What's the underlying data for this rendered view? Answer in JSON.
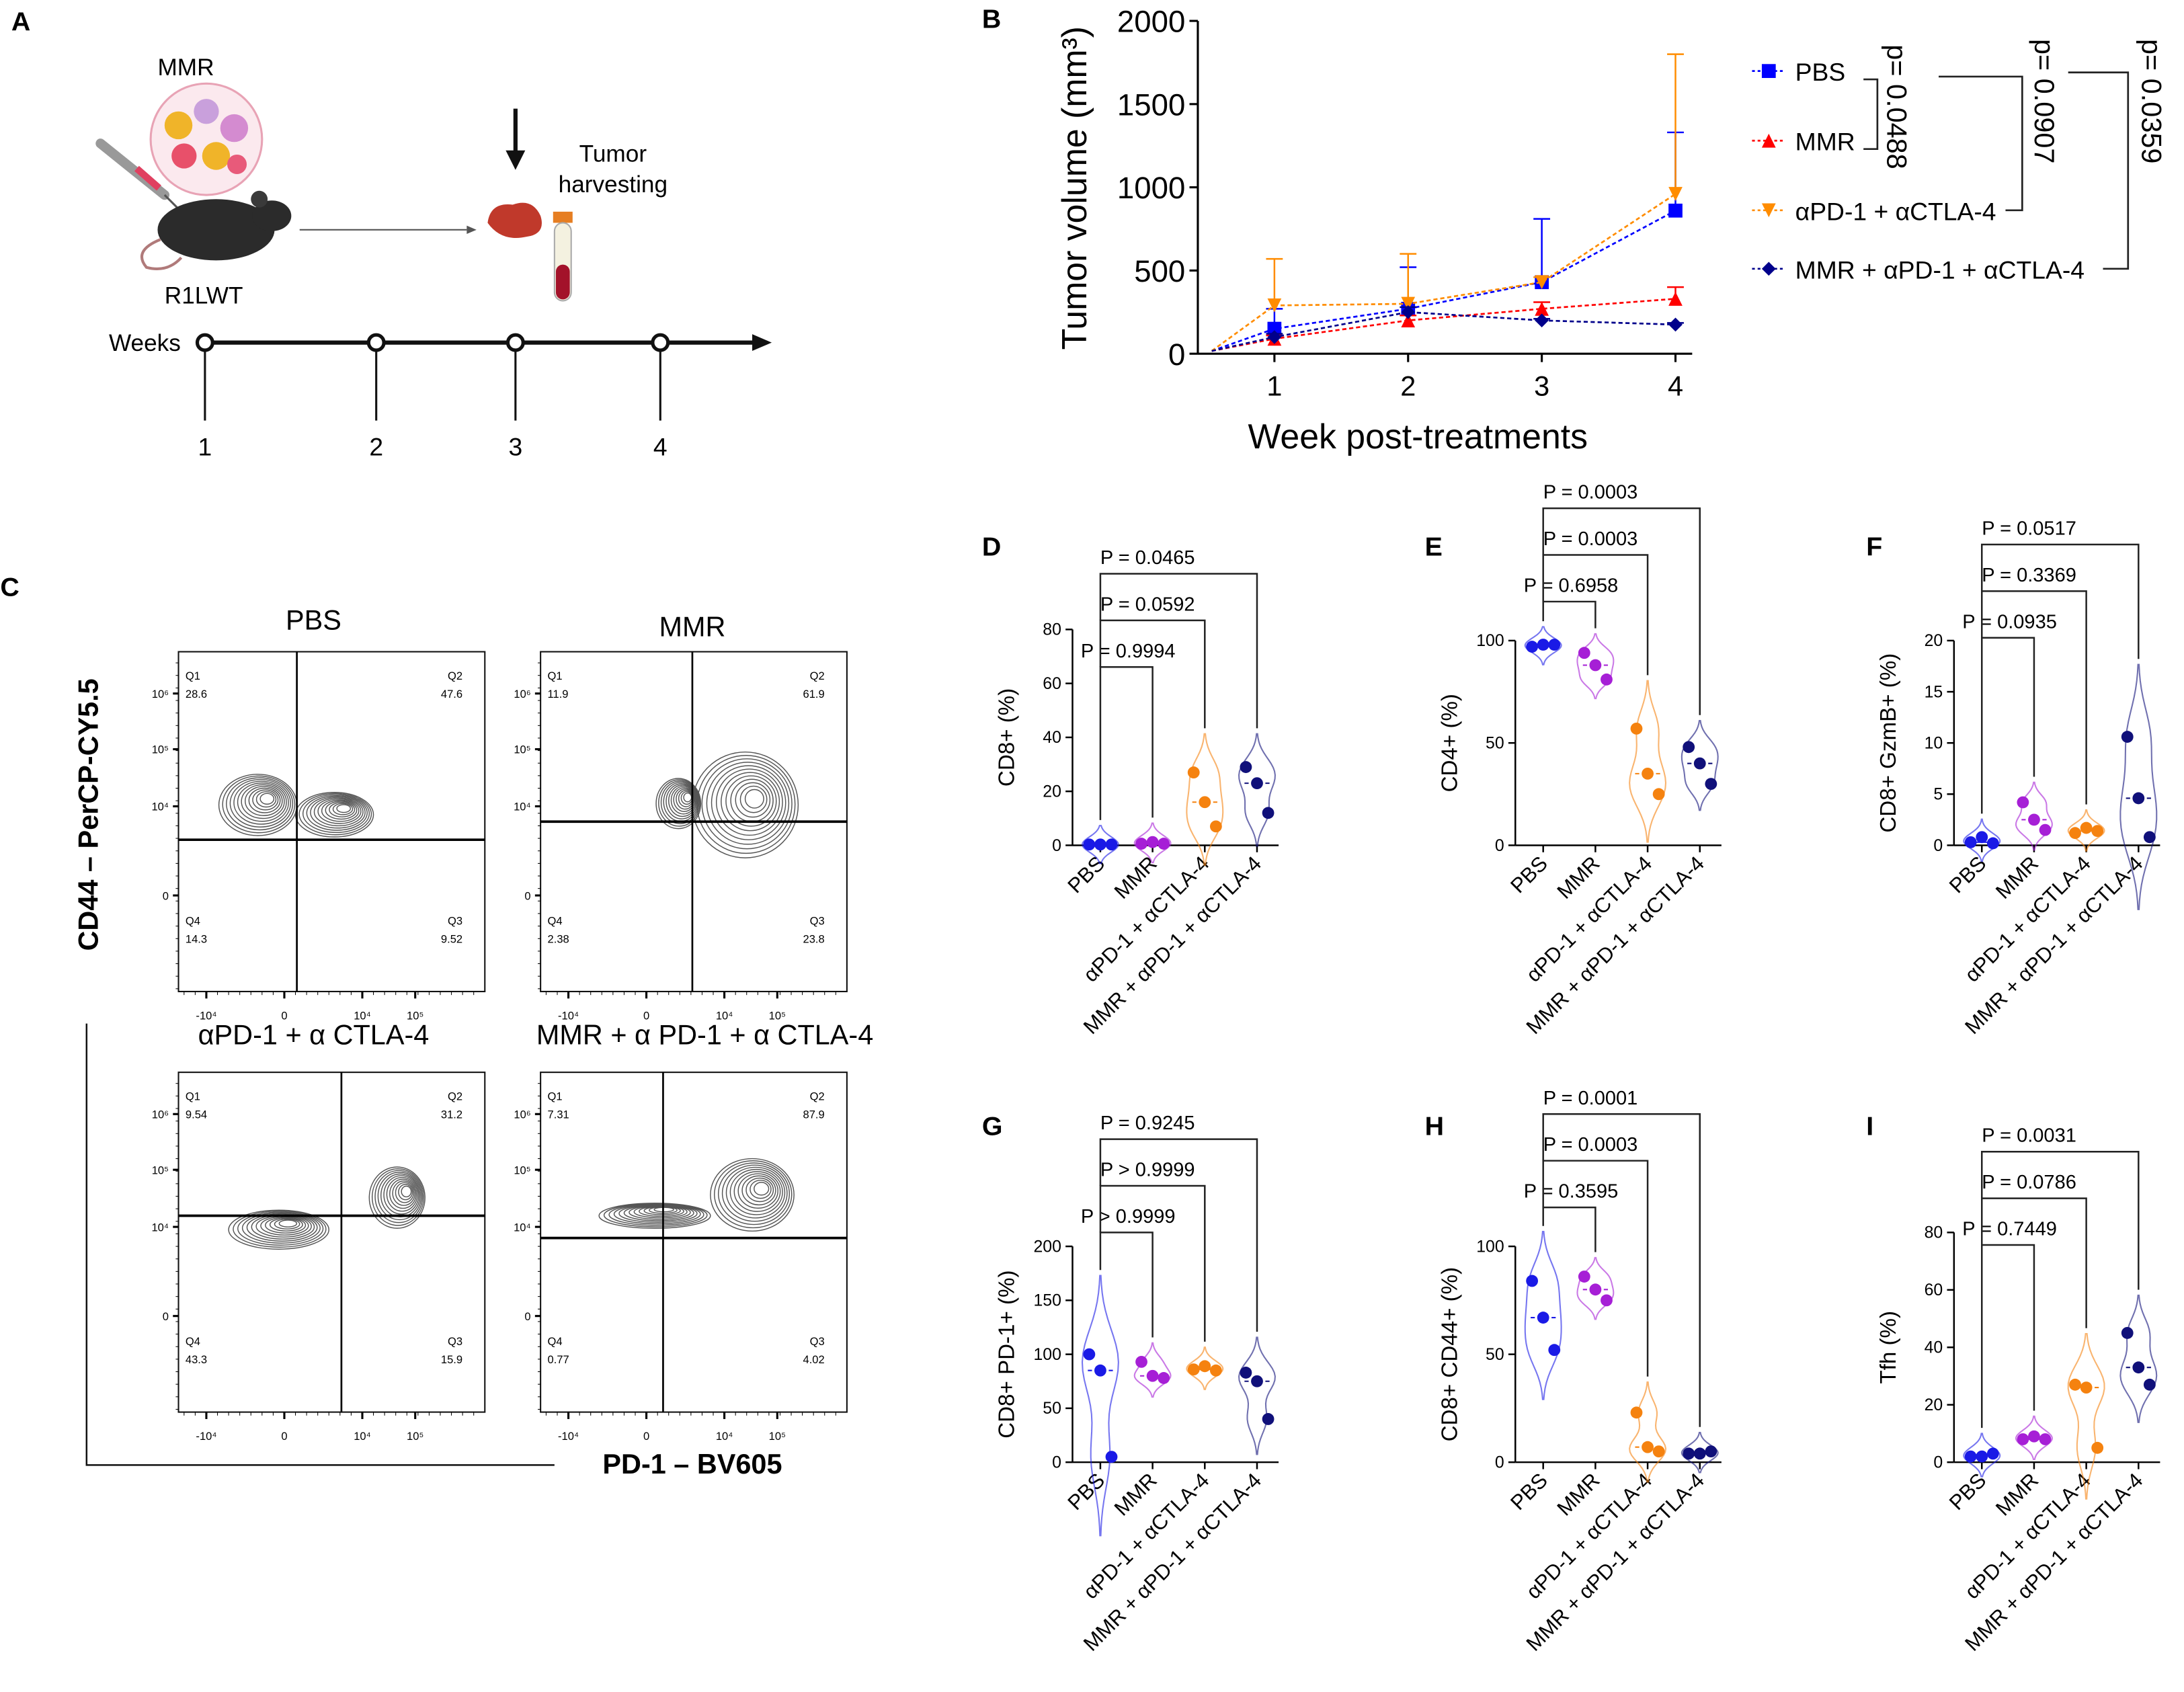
{
  "panel_labels": [
    "A",
    "B",
    "C",
    "D",
    "E",
    "F",
    "G",
    "H",
    "I"
  ],
  "panel_a": {
    "mmr_label": "MMR",
    "mouse_label": "R1LWT",
    "harvest_line1": "Tumor",
    "harvest_line2": "harvesting",
    "weeks_label": "Weeks",
    "week_ticks": [
      "1",
      "2",
      "3",
      "4"
    ]
  },
  "panel_c": {
    "y_axis_label": "CD44 – PerCP-CY5.5",
    "x_axis_label": "PD-1 – BV605",
    "y_ticks": [
      "10⁶",
      "10⁵",
      "10⁴",
      "0"
    ],
    "x_ticks": [
      "-10⁴",
      "0",
      "10⁴",
      "10⁵"
    ],
    "plots": [
      {
        "title": "PBS",
        "q1": "Q1",
        "q1_value": "28.6",
        "q2": "Q2",
        "q2_value": "47.6",
        "q3": "Q3",
        "q3_value": "9.52",
        "q4": "Q4",
        "q4_value": "14.3"
      },
      {
        "title": "MMR",
        "q1": "Q1",
        "q1_value": "11.9",
        "q2": "Q2",
        "q2_value": "61.9",
        "q3": "Q3",
        "q3_value": "23.8",
        "q4": "Q4",
        "q4_value": "2.38"
      },
      {
        "title": "αPD-1 + α CTLA-4",
        "q1": "Q1",
        "q1_value": "9.54",
        "q2": "Q2",
        "q2_value": "31.2",
        "q3": "Q3",
        "q3_value": "15.9",
        "q4": "Q4",
        "q4_value": "43.3"
      },
      {
        "title": "MMR + α PD-1 + α CTLA-4",
        "q1": "Q1",
        "q1_value": "7.31",
        "q2": "Q2",
        "q2_value": "87.9",
        "q3": "Q3",
        "q3_value": "4.02",
        "q4": "Q4",
        "q4_value": "0.77"
      }
    ]
  },
  "colors": {
    "PBS": "#1a1ae6",
    "MMR": "#a61fd6",
    "aPD": "#f5820f",
    "combo": "#10107a"
  },
  "chart_data": [
    {
      "panel": "B",
      "type": "line",
      "xlabel": "Week post-treatments",
      "ylabel": "Tumor volume (mm³)",
      "x": [
        1,
        2,
        3,
        4
      ],
      "xticks": [
        "1",
        "2",
        "3",
        "4"
      ],
      "ylim": [
        0,
        2000
      ],
      "yticks": [
        "0",
        "500",
        "1000",
        "1500",
        "2000"
      ],
      "series": [
        {
          "name": "PBS",
          "color": "#0000ff",
          "marker": "square",
          "values": [
            150,
            270,
            430,
            860
          ],
          "error_upper": [
            270,
            520,
            810,
            1330
          ]
        },
        {
          "name": "MMR",
          "color": "#ff0000",
          "marker": "triangle",
          "values": [
            90,
            200,
            270,
            330
          ],
          "error_upper": [
            110,
            230,
            310,
            400
          ]
        },
        {
          "name": "αPD-1 + αCTLA-4",
          "color": "#ff8c00",
          "marker": "triangle-down",
          "values": [
            290,
            300,
            430,
            960
          ],
          "error_upper": [
            570,
            600,
            460,
            1800
          ]
        },
        {
          "name": "MMR + αPD-1 + αCTLA-4",
          "color": "#00008b",
          "marker": "diamond",
          "values": [
            100,
            250,
            200,
            175
          ],
          "error_upper": [
            120,
            280,
            210,
            185
          ]
        }
      ],
      "comparisons": [
        {
          "label": "p= 0.0488",
          "groups": [
            "PBS",
            "MMR"
          ]
        },
        {
          "label": "p= 0.0907",
          "groups": [
            "PBS",
            "αPD-1 + αCTLA-4"
          ]
        },
        {
          "label": "p= 0.0359",
          "groups": [
            "PBS",
            "MMR + αPD-1 + αCTLA-4"
          ]
        }
      ]
    },
    {
      "panel": "D",
      "type": "violin",
      "ylabel": "CD8+ (%)",
      "ylim": [
        0,
        80
      ],
      "yticks": [
        "0",
        "20",
        "40",
        "60",
        "80"
      ],
      "categories": [
        "PBS",
        "MMR",
        "αPD-1 + αCTLA-4",
        "MMR + αPD-1 + αCTLA-4"
      ],
      "values": [
        [
          0.3,
          0.3,
          0.3
        ],
        [
          0.6,
          1.2,
          0.6
        ],
        [
          27,
          16,
          7
        ],
        [
          29,
          23,
          12
        ]
      ],
      "comparisons": [
        {
          "label": "P = 0.9994",
          "to": 1
        },
        {
          "label": "P = 0.0592",
          "to": 2
        },
        {
          "label": "P = 0.0465",
          "to": 3
        }
      ]
    },
    {
      "panel": "E",
      "type": "violin",
      "ylabel": "CD4+ (%)",
      "ylim": [
        0,
        100
      ],
      "yticks": [
        "0",
        "50",
        "100"
      ],
      "categories": [
        "PBS",
        "MMR",
        "αPD-1 + αCTLA-4",
        "MMR + αPD-1 + αCTLA-4"
      ],
      "values": [
        [
          97,
          98,
          98
        ],
        [
          94,
          88,
          81
        ],
        [
          57,
          35,
          25
        ],
        [
          48,
          40,
          30
        ]
      ],
      "comparisons": [
        {
          "label": "P = 0.6958",
          "to": 1
        },
        {
          "label": "P = 0.0003",
          "to": 2
        },
        {
          "label": "P = 0.0003",
          "to": 3
        }
      ]
    },
    {
      "panel": "F",
      "type": "violin",
      "ylabel": "CD8+ GzmB+ (%)",
      "ylim": [
        0,
        20
      ],
      "yticks": [
        "0",
        "5",
        "10",
        "15",
        "20"
      ],
      "categories": [
        "PBS",
        "MMR",
        "αPD-1 + αCTLA-4",
        "MMR + αPD-1 + αCTLA-4"
      ],
      "values": [
        [
          0.3,
          0.8,
          0.2
        ],
        [
          4.2,
          2.5,
          1.5
        ],
        [
          1.2,
          1.7,
          1.4
        ],
        [
          10.6,
          4.6,
          0.8
        ]
      ],
      "comparisons": [
        {
          "label": "P = 0.0935",
          "to": 1
        },
        {
          "label": "P = 0.3369",
          "to": 2
        },
        {
          "label": "P = 0.0517",
          "to": 3
        }
      ]
    },
    {
      "panel": "G",
      "type": "violin",
      "ylabel": "CD8+ PD-1+ (%)",
      "ylim": [
        0,
        200
      ],
      "yticks": [
        "0",
        "50",
        "100",
        "150",
        "200"
      ],
      "categories": [
        "PBS",
        "MMR",
        "αPD-1 + αCTLA-4",
        "MMR + αPD-1 + αCTLA-4"
      ],
      "values": [
        [
          100,
          85,
          5
        ],
        [
          93,
          80,
          78
        ],
        [
          86,
          89,
          85
        ],
        [
          83,
          75,
          40
        ]
      ],
      "comparisons": [
        {
          "label": "P > 0.9999",
          "to": 1
        },
        {
          "label": "P > 0.9999",
          "to": 2
        },
        {
          "label": "P = 0.9245",
          "to": 3
        }
      ]
    },
    {
      "panel": "H",
      "type": "violin",
      "ylabel": "CD8+ CD44+ (%)",
      "ylim": [
        0,
        100
      ],
      "yticks": [
        "0",
        "50",
        "100"
      ],
      "categories": [
        "PBS",
        "MMR",
        "αPD-1 + αCTLA-4",
        "MMR + αPD-1 + αCTLA-4"
      ],
      "values": [
        [
          84,
          67,
          52
        ],
        [
          86,
          80,
          75
        ],
        [
          23,
          7,
          5
        ],
        [
          4,
          4,
          5
        ]
      ],
      "comparisons": [
        {
          "label": "P = 0.3595",
          "to": 1
        },
        {
          "label": "P = 0.0003",
          "to": 2
        },
        {
          "label": "P = 0.0001",
          "to": 3
        }
      ]
    },
    {
      "panel": "I",
      "type": "violin",
      "ylabel": "Tfh (%)",
      "ylim": [
        0,
        80
      ],
      "yticks": [
        "0",
        "20",
        "40",
        "60",
        "80"
      ],
      "categories": [
        "PBS",
        "MMR",
        "αPD-1 + αCTLA-4",
        "MMR + αPD-1 + αCTLA-4"
      ],
      "values": [
        [
          2,
          2,
          3
        ],
        [
          8,
          9,
          8
        ],
        [
          27,
          26,
          5
        ],
        [
          45,
          33,
          27
        ]
      ],
      "comparisons": [
        {
          "label": "P = 0.7449",
          "to": 1
        },
        {
          "label": "P = 0.0786",
          "to": 2
        },
        {
          "label": "P = 0.0031",
          "to": 3
        }
      ]
    }
  ]
}
